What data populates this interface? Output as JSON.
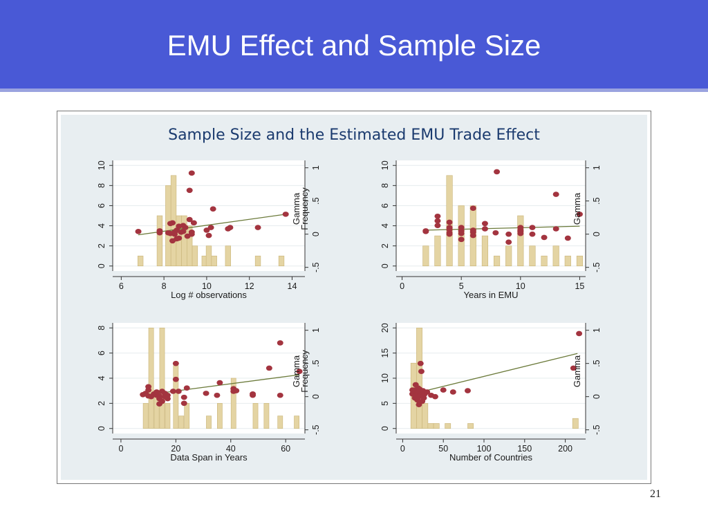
{
  "slide": {
    "title": "EMU Effect and Sample Size",
    "page_number": "21"
  },
  "colors": {
    "header_bg": "#4959d6",
    "plot_bg": "#e8eef1",
    "bar_fill": "#e4d4a3",
    "bar_stroke": "#c9b478",
    "point_fill": "#a3343f",
    "fit_line": "#6b7a3a"
  },
  "chart_data": [
    {
      "type": "scatter",
      "figure_title": "Sample Size and the Estimated EMU Trade Effect",
      "xlabel": "Log # observations",
      "y_left_label": "Frequency",
      "y_right_label": "Gamma",
      "xlim": [
        5.6,
        14.6
      ],
      "x_ticks": [
        6,
        8,
        10,
        12,
        14
      ],
      "ylim_left": [
        -0.5,
        10.5
      ],
      "y_left_ticks": [
        0,
        2,
        4,
        6,
        8,
        10
      ],
      "ylim_right": [
        -0.5556,
        1.1111
      ],
      "y_right_ticks": [
        -0.5,
        0,
        0.5,
        1
      ],
      "y_right_tick_labels": [
        "-.5",
        "0",
        ".5",
        "1"
      ],
      "histogram": [
        {
          "x": 6.9,
          "count": 1
        },
        {
          "x": 7.8,
          "count": 5
        },
        {
          "x": 8.2,
          "count": 8
        },
        {
          "x": 8.45,
          "count": 9
        },
        {
          "x": 8.7,
          "count": 5
        },
        {
          "x": 8.95,
          "count": 5
        },
        {
          "x": 9.2,
          "count": 4
        },
        {
          "x": 9.45,
          "count": 2
        },
        {
          "x": 9.9,
          "count": 1
        },
        {
          "x": 10.1,
          "count": 2
        },
        {
          "x": 10.35,
          "count": 1
        },
        {
          "x": 11.0,
          "count": 2
        },
        {
          "x": 12.4,
          "count": 1
        },
        {
          "x": 13.5,
          "count": 1
        }
      ],
      "bar_width": 0.25,
      "points": [
        [
          6.8,
          0.04
        ],
        [
          7.8,
          0.05
        ],
        [
          7.8,
          0.02
        ],
        [
          8.2,
          0.02
        ],
        [
          8.3,
          0.16
        ],
        [
          8.4,
          0.17
        ],
        [
          8.5,
          0.03
        ],
        [
          8.6,
          0.06
        ],
        [
          8.7,
          0.12
        ],
        [
          8.8,
          0.03
        ],
        [
          8.9,
          0.04
        ],
        [
          9.0,
          0.1
        ],
        [
          9.1,
          -0.03
        ],
        [
          8.6,
          -0.07
        ],
        [
          8.7,
          -0.06
        ],
        [
          8.4,
          -0.1
        ],
        [
          8.3,
          0.01
        ],
        [
          8.5,
          0.0
        ],
        [
          8.9,
          0.13
        ],
        [
          9.2,
          0.22
        ],
        [
          9.3,
          0.03
        ],
        [
          9.3,
          0.0
        ],
        [
          9.4,
          0.17
        ],
        [
          9.2,
          0.66
        ],
        [
          9.3,
          0.92
        ],
        [
          10.0,
          0.06
        ],
        [
          10.1,
          -0.02
        ],
        [
          10.2,
          0.1
        ],
        [
          10.3,
          0.38
        ],
        [
          11.0,
          0.08
        ],
        [
          11.1,
          0.1
        ],
        [
          12.4,
          0.1
        ],
        [
          13.7,
          0.3
        ]
      ],
      "fit_line": [
        [
          6.8,
          -0.01
        ],
        [
          13.7,
          0.3
        ]
      ]
    },
    {
      "type": "scatter",
      "xlabel": "Years in EMU",
      "y_left_label": "",
      "y_right_label": "Gamma",
      "xlim": [
        -0.5,
        15.5
      ],
      "x_ticks": [
        0,
        5,
        10,
        15
      ],
      "ylim_left": [
        -0.5,
        10.5
      ],
      "y_left_ticks": [
        0,
        2,
        4,
        6,
        8,
        10
      ],
      "ylim_right": [
        -0.5556,
        1.1111
      ],
      "y_right_ticks": [
        -0.5,
        0,
        0.5,
        1
      ],
      "y_right_tick_labels": [
        "-.5",
        "0",
        ".5",
        "1"
      ],
      "histogram": [
        {
          "x": 2,
          "count": 2
        },
        {
          "x": 3,
          "count": 3
        },
        {
          "x": 4,
          "count": 9
        },
        {
          "x": 5,
          "count": 6
        },
        {
          "x": 6,
          "count": 6
        },
        {
          "x": 7,
          "count": 3
        },
        {
          "x": 8,
          "count": 1
        },
        {
          "x": 9,
          "count": 2
        },
        {
          "x": 10,
          "count": 5
        },
        {
          "x": 11,
          "count": 2
        },
        {
          "x": 12,
          "count": 1
        },
        {
          "x": 13,
          "count": 2
        },
        {
          "x": 14,
          "count": 1
        },
        {
          "x": 15,
          "count": 1
        }
      ],
      "bar_width": 0.5,
      "points": [
        [
          2,
          0.04
        ],
        [
          2,
          0.05
        ],
        [
          3,
          0.2
        ],
        [
          3,
          0.13
        ],
        [
          3,
          0.27
        ],
        [
          4,
          0.07
        ],
        [
          4,
          0.02
        ],
        [
          4,
          0.0
        ],
        [
          4,
          0.1
        ],
        [
          4,
          0.18
        ],
        [
          5,
          -0.08
        ],
        [
          5,
          0.1
        ],
        [
          5,
          0.05
        ],
        [
          5,
          0.01
        ],
        [
          6,
          0.03
        ],
        [
          6,
          0.06
        ],
        [
          6,
          0.39
        ],
        [
          6,
          -0.02
        ],
        [
          7,
          0.08
        ],
        [
          7,
          0.16
        ],
        [
          7.9,
          0.02
        ],
        [
          8,
          0.94
        ],
        [
          9,
          0.0
        ],
        [
          9,
          -0.12
        ],
        [
          10,
          0.1
        ],
        [
          10,
          0.06
        ],
        [
          10,
          0.04
        ],
        [
          10,
          0.01
        ],
        [
          11,
          0.1
        ],
        [
          11,
          0.0
        ],
        [
          12,
          -0.05
        ],
        [
          13,
          0.08
        ],
        [
          13,
          0.6
        ],
        [
          14,
          -0.06
        ],
        [
          15,
          0.3
        ]
      ],
      "fit_line": [
        [
          2,
          0.06
        ],
        [
          15,
          0.12
        ]
      ]
    },
    {
      "type": "scatter",
      "xlabel": "Data Span in Years",
      "y_left_label": "Frequency",
      "y_right_label": "Gamma",
      "xlim": [
        -3,
        67
      ],
      "x_ticks": [
        0,
        20,
        40,
        60
      ],
      "ylim_left": [
        -0.4,
        8.4
      ],
      "y_left_ticks": [
        0,
        2,
        4,
        6,
        8
      ],
      "ylim_right": [
        -0.5556,
        1.1111
      ],
      "y_right_ticks": [
        -0.5,
        0,
        0.5,
        1
      ],
      "y_right_tick_labels": [
        "-.5",
        "0",
        ".5",
        "1"
      ],
      "histogram": [
        {
          "x": 9,
          "count": 2
        },
        {
          "x": 11,
          "count": 8
        },
        {
          "x": 13,
          "count": 3
        },
        {
          "x": 15,
          "count": 8
        },
        {
          "x": 17,
          "count": 2
        },
        {
          "x": 20,
          "count": 5
        },
        {
          "x": 22,
          "count": 1
        },
        {
          "x": 24,
          "count": 2
        },
        {
          "x": 32,
          "count": 1
        },
        {
          "x": 36,
          "count": 2
        },
        {
          "x": 41,
          "count": 4
        },
        {
          "x": 49,
          "count": 2
        },
        {
          "x": 53,
          "count": 2
        },
        {
          "x": 58,
          "count": 1
        },
        {
          "x": 64,
          "count": 1
        }
      ],
      "bar_width": 1.8,
      "points": [
        [
          8,
          0.03
        ],
        [
          9,
          0.05
        ],
        [
          10,
          0.01
        ],
        [
          10,
          0.1
        ],
        [
          10,
          0.15
        ],
        [
          11,
          0.0
        ],
        [
          12,
          0.04
        ],
        [
          13,
          0.02
        ],
        [
          13,
          0.07
        ],
        [
          14,
          0.01
        ],
        [
          14,
          -0.03
        ],
        [
          14,
          -0.11
        ],
        [
          15,
          0.08
        ],
        [
          15,
          -0.07
        ],
        [
          16,
          0.05
        ],
        [
          16,
          0.0
        ],
        [
          17,
          -0.03
        ],
        [
          17,
          0.02
        ],
        [
          19,
          0.08
        ],
        [
          20,
          0.5
        ],
        [
          20,
          0.26
        ],
        [
          21,
          0.08
        ],
        [
          23,
          -0.1
        ],
        [
          23,
          -0.01
        ],
        [
          24,
          0.13
        ],
        [
          31,
          0.05
        ],
        [
          35,
          0.02
        ],
        [
          36,
          0.21
        ],
        [
          41,
          0.12
        ],
        [
          41,
          0.08
        ],
        [
          42,
          0.09
        ],
        [
          48,
          0.02
        ],
        [
          48,
          0.04
        ],
        [
          54,
          0.43
        ],
        [
          58,
          0.02
        ],
        [
          58,
          0.81
        ],
        [
          65,
          0.38
        ]
      ],
      "fit_line": [
        [
          8,
          0.02
        ],
        [
          65,
          0.33
        ]
      ]
    },
    {
      "type": "scatter",
      "xlabel": "Number of Countries",
      "y_left_label": "",
      "y_right_label": "Gamma",
      "xlim": [
        -8,
        225
      ],
      "x_ticks": [
        0,
        50,
        100,
        150,
        200
      ],
      "ylim_left": [
        -1,
        21
      ],
      "y_left_ticks": [
        0,
        5,
        10,
        15,
        20
      ],
      "ylim_right": [
        -0.5556,
        1.1111
      ],
      "y_right_ticks": [
        -0.5,
        0,
        0.5,
        1
      ],
      "y_right_tick_labels": [
        "-.5",
        "0",
        ".5",
        "1"
      ],
      "histogram": [
        {
          "x": 13.5,
          "count": 13
        },
        {
          "x": 20.5,
          "count": 20
        },
        {
          "x": 27.5,
          "count": 5
        },
        {
          "x": 34.5,
          "count": 1
        },
        {
          "x": 41.5,
          "count": 1
        },
        {
          "x": 55.5,
          "count": 1
        },
        {
          "x": 83.5,
          "count": 1
        },
        {
          "x": 212.5,
          "count": 2
        }
      ],
      "bar_width": 7,
      "points": [
        [
          12,
          0.1
        ],
        [
          12,
          0.04
        ],
        [
          13,
          0.06
        ],
        [
          14,
          0.09
        ],
        [
          15,
          -0.02
        ],
        [
          15,
          0.1
        ],
        [
          16,
          0.18
        ],
        [
          17,
          0.02
        ],
        [
          17,
          0.1
        ],
        [
          18,
          0.06
        ],
        [
          18,
          -0.05
        ],
        [
          19,
          0.04
        ],
        [
          19,
          0.13
        ],
        [
          20,
          0.0
        ],
        [
          20,
          0.08
        ],
        [
          20,
          -0.12
        ],
        [
          21,
          0.11
        ],
        [
          21,
          -0.08
        ],
        [
          22,
          0.05
        ],
        [
          22,
          0.01
        ],
        [
          22,
          0.5
        ],
        [
          23,
          0.38
        ],
        [
          24,
          0.07
        ],
        [
          24,
          -0.07
        ],
        [
          25,
          0.09
        ],
        [
          26,
          -0.02
        ],
        [
          27,
          0.04
        ],
        [
          28,
          0.06
        ],
        [
          30,
          0.07
        ],
        [
          35,
          0.02
        ],
        [
          40,
          0.0
        ],
        [
          50,
          0.1
        ],
        [
          62,
          0.07
        ],
        [
          80,
          0.09
        ],
        [
          210,
          0.43
        ],
        [
          217,
          0.95
        ]
      ],
      "fit_line": [
        [
          15,
          0.05
        ],
        [
          215,
          0.65
        ]
      ]
    }
  ]
}
